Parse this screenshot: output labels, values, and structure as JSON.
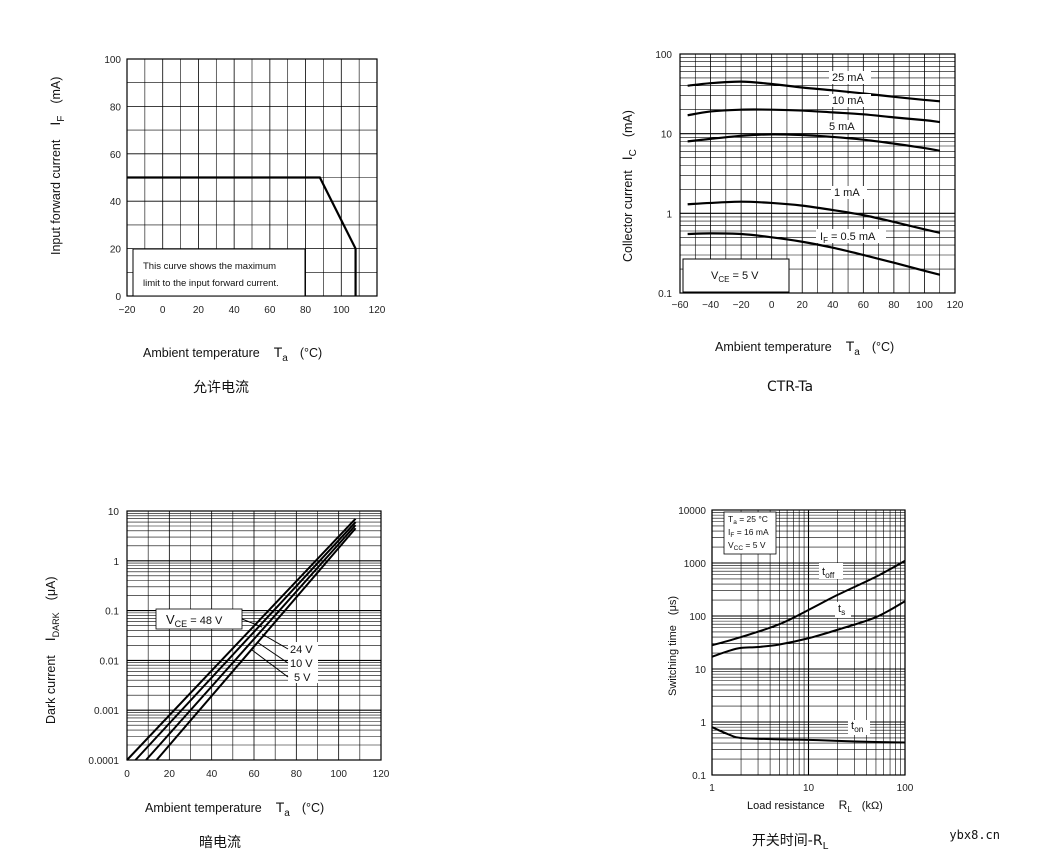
{
  "watermark": "ybx8.cn",
  "chart_data": [
    {
      "id": "c1",
      "type": "line",
      "caption": "允许电流",
      "xlabel": "Ambient temperature",
      "xsym": "T",
      "xsub": "a",
      "xunit": "(°C)",
      "ylabel": "Input forward current",
      "ysym": "I",
      "ysub": "F",
      "yunit": "(mA)",
      "xlim": [
        -20,
        120
      ],
      "ylim": [
        0,
        100
      ],
      "xticks": [
        -20,
        0,
        20,
        40,
        60,
        80,
        100,
        120
      ],
      "yticks": [
        0,
        20,
        40,
        60,
        80,
        100
      ],
      "note": [
        "This curve shows the maximum",
        "limit to the input forward current."
      ],
      "series": [
        {
          "name": "max IF",
          "x": [
            -20,
            88,
            108,
            108
          ],
          "y": [
            50,
            50,
            20,
            0
          ]
        }
      ]
    },
    {
      "id": "c2",
      "type": "line",
      "caption": "CTR-Ta",
      "xlabel": "Ambient temperature",
      "xsym": "T",
      "xsub": "a",
      "xunit": "(°C)",
      "ylabel": "Collector current",
      "ysym": "I",
      "ysub": "C",
      "yunit": "(mA)",
      "xlim": [
        -60,
        120
      ],
      "ylim": [
        0.1,
        100
      ],
      "yscale": "log",
      "xticks": [
        -60,
        -40,
        -20,
        0,
        20,
        40,
        60,
        80,
        100,
        120
      ],
      "xtick_labels": [
        "−60",
        "−40",
        "−20",
        "0",
        "20",
        "40",
        "60",
        "80",
        "100",
        "120"
      ],
      "yticks": [
        0.1,
        1,
        10,
        100
      ],
      "ytick_labels": [
        "0.1",
        "1",
        "10",
        "100"
      ],
      "condition": {
        "sym": "V",
        "sub": "CE",
        "text": " = 5 V"
      },
      "series": [
        {
          "name": "25 mA",
          "x": [
            -55,
            -40,
            -20,
            0,
            20,
            40,
            60,
            80,
            100,
            110
          ],
          "y": [
            40,
            43,
            45,
            42,
            38,
            35,
            32,
            29,
            26.5,
            25.5
          ]
        },
        {
          "name": "10 mA",
          "x": [
            -55,
            -40,
            -20,
            0,
            20,
            40,
            60,
            80,
            100,
            110
          ],
          "y": [
            17,
            19,
            20,
            20,
            19.5,
            18.5,
            17.5,
            16,
            14.8,
            14
          ]
        },
        {
          "name": "5 mA",
          "x": [
            -55,
            -40,
            -20,
            0,
            20,
            40,
            60,
            80,
            100,
            110
          ],
          "y": [
            8,
            8.6,
            9.4,
            9.8,
            9.6,
            9.1,
            8.4,
            7.5,
            6.6,
            6.1
          ]
        },
        {
          "name": "1 mA",
          "x": [
            -55,
            -40,
            -20,
            0,
            20,
            40,
            60,
            80,
            100,
            110
          ],
          "y": [
            1.3,
            1.35,
            1.4,
            1.35,
            1.25,
            1.1,
            0.95,
            0.78,
            0.63,
            0.57
          ]
        },
        {
          "name": "IF = 0.5 mA",
          "x": [
            -55,
            -40,
            -20,
            0,
            20,
            40,
            60,
            80,
            100,
            110
          ],
          "y": [
            0.55,
            0.56,
            0.55,
            0.5,
            0.44,
            0.37,
            0.3,
            0.24,
            0.19,
            0.17
          ]
        }
      ],
      "series_label_parts": {
        "IF = 0.5 mA": {
          "sym": "I",
          "sub": "F",
          "text": " = 0.5 mA"
        }
      }
    },
    {
      "id": "c3",
      "type": "line",
      "caption": "暗电流",
      "xlabel": "Ambient temperature",
      "xsym": "T",
      "xsub": "a",
      "xunit": "(°C)",
      "ylabel": "Dark current",
      "ysym": "I",
      "ysub": "DARK",
      "yunit": "(μA)",
      "xlim": [
        0,
        120
      ],
      "ylim": [
        0.0001,
        10
      ],
      "yscale": "log",
      "xticks": [
        0,
        20,
        40,
        60,
        80,
        100,
        120
      ],
      "yticks": [
        0.0001,
        0.001,
        0.01,
        0.1,
        1,
        10
      ],
      "ytick_labels": [
        "0.0001",
        "0.001",
        "0.01",
        "0.1",
        "1",
        "10"
      ],
      "series": [
        {
          "name": "VCE = 48 V",
          "x": [
            0,
            108
          ],
          "y": [
            0.0001,
            7
          ]
        },
        {
          "name": "24 V",
          "x": [
            4,
            108
          ],
          "y": [
            0.0001,
            6
          ]
        },
        {
          "name": "10 V",
          "x": [
            9,
            108
          ],
          "y": [
            0.0001,
            5.2
          ]
        },
        {
          "name": "5 V",
          "x": [
            14,
            108
          ],
          "y": [
            0.0001,
            4.5
          ]
        }
      ],
      "labels": {
        "vce48": {
          "sym": "V",
          "sub": "CE",
          "text": " = 48 V"
        },
        "v24": "24 V",
        "v10": "10 V",
        "v5": "5 V"
      }
    },
    {
      "id": "c4",
      "type": "line",
      "caption_main": "开关时间-R",
      "caption_sub": "L",
      "xlabel": "Load resistance",
      "xsym": "R",
      "xsub": "L",
      "xunit": "(kΩ)",
      "ylabel": "Switching time",
      "yunit": "(μs)",
      "xlim": [
        1,
        100
      ],
      "xscale": "log",
      "ylim": [
        0.1,
        10000
      ],
      "yscale": "log",
      "xticks": [
        1,
        10,
        100
      ],
      "xtick_labels": [
        "1",
        "10",
        "100"
      ],
      "yticks": [
        0.1,
        1,
        10,
        100,
        1000,
        10000
      ],
      "ytick_labels": [
        "0.1",
        "1",
        "10",
        "100",
        "1000",
        "10000"
      ],
      "conditions": [
        {
          "sym": "T",
          "sub": "a",
          "text": " = 25 °C"
        },
        {
          "sym": "I",
          "sub": "F",
          "text": " = 16 mA"
        },
        {
          "sym": "V",
          "sub": "CC",
          "text": " = 5 V"
        }
      ],
      "series": [
        {
          "name": "toff",
          "x": [
            1,
            2,
            5,
            10,
            20,
            50,
            100
          ],
          "y": [
            28,
            40,
            70,
            130,
            250,
            550,
            1100
          ]
        },
        {
          "name": "ts",
          "x": [
            1,
            1.5,
            2,
            3,
            5,
            10,
            20,
            50,
            100
          ],
          "y": [
            17,
            22,
            25,
            26,
            29,
            38,
            55,
            95,
            190
          ]
        },
        {
          "name": "ton",
          "x": [
            1,
            1.5,
            2,
            5,
            10,
            20,
            50,
            100
          ],
          "y": [
            0.8,
            0.58,
            0.5,
            0.47,
            0.46,
            0.44,
            0.42,
            0.41
          ]
        }
      ],
      "curve_labels": {
        "toff": {
          "sym": "t",
          "sub": "off"
        },
        "ts": {
          "sym": "t",
          "sub": "s"
        },
        "ton": {
          "sym": "t",
          "sub": "on"
        }
      }
    }
  ]
}
